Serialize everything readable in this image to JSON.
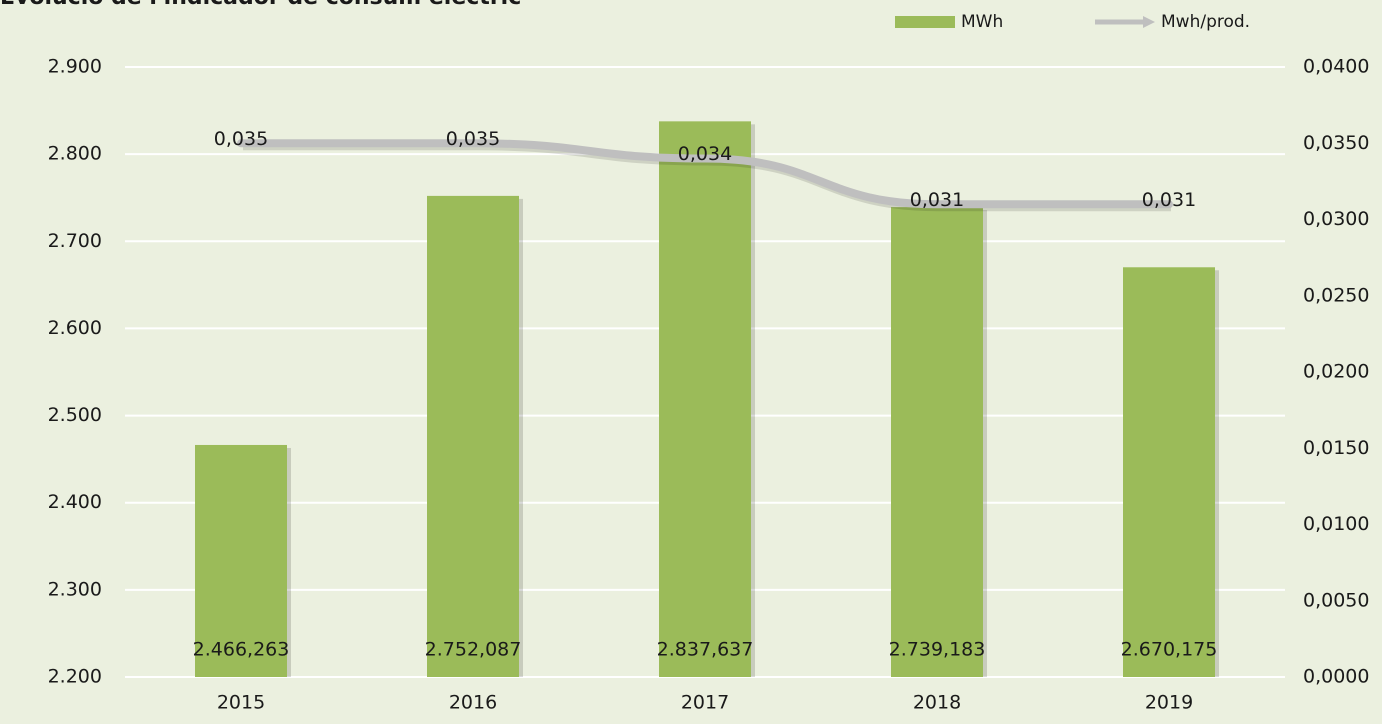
{
  "chart_data": {
    "type": "bar-line",
    "title": "Evolució de l'indicador de consum elèctric",
    "categories": [
      "2015",
      "2016",
      "2017",
      "2018",
      "2019"
    ],
    "series": [
      {
        "name": "MWh",
        "type": "bar",
        "color": "#9bbb59",
        "values": [
          2466.263,
          2752.087,
          2837.637,
          2739.183,
          2670.175
        ],
        "value_labels": [
          "2.466,263",
          "2.752,087",
          "2.837,637",
          "2.739,183",
          "2.670,175"
        ]
      },
      {
        "name": "Mwh/prod.",
        "type": "line",
        "axis": "y2",
        "color": "#bfbfbf",
        "values": [
          0.035,
          0.035,
          0.034,
          0.031,
          0.031
        ],
        "value_labels": [
          "0,035",
          "0,035",
          "0,034",
          "0,031",
          "0,031"
        ]
      }
    ],
    "ylim": [
      2200,
      2900
    ],
    "yticks": [
      {
        "value": 2200,
        "label": "2.200"
      },
      {
        "value": 2300,
        "label": "2.300"
      },
      {
        "value": 2400,
        "label": "2.400"
      },
      {
        "value": 2500,
        "label": "2.500"
      },
      {
        "value": 2600,
        "label": "2.600"
      },
      {
        "value": 2700,
        "label": "2.700"
      },
      {
        "value": 2800,
        "label": "2.800"
      },
      {
        "value": 2900,
        "label": "2.900"
      }
    ],
    "y2lim": [
      0,
      0.04
    ],
    "y2ticks": [
      {
        "value": 0,
        "label": "0,0000"
      },
      {
        "value": 0.005,
        "label": "0,0050"
      },
      {
        "value": 0.01,
        "label": "0,0100"
      },
      {
        "value": 0.015,
        "label": "0,0150"
      },
      {
        "value": 0.02,
        "label": "0,0200"
      },
      {
        "value": 0.025,
        "label": "0,0250"
      },
      {
        "value": 0.03,
        "label": "0,0300"
      },
      {
        "value": 0.035,
        "label": "0,0350"
      },
      {
        "value": 0.04,
        "label": "0,0400"
      }
    ],
    "grid": true,
    "legend": "top-right"
  }
}
